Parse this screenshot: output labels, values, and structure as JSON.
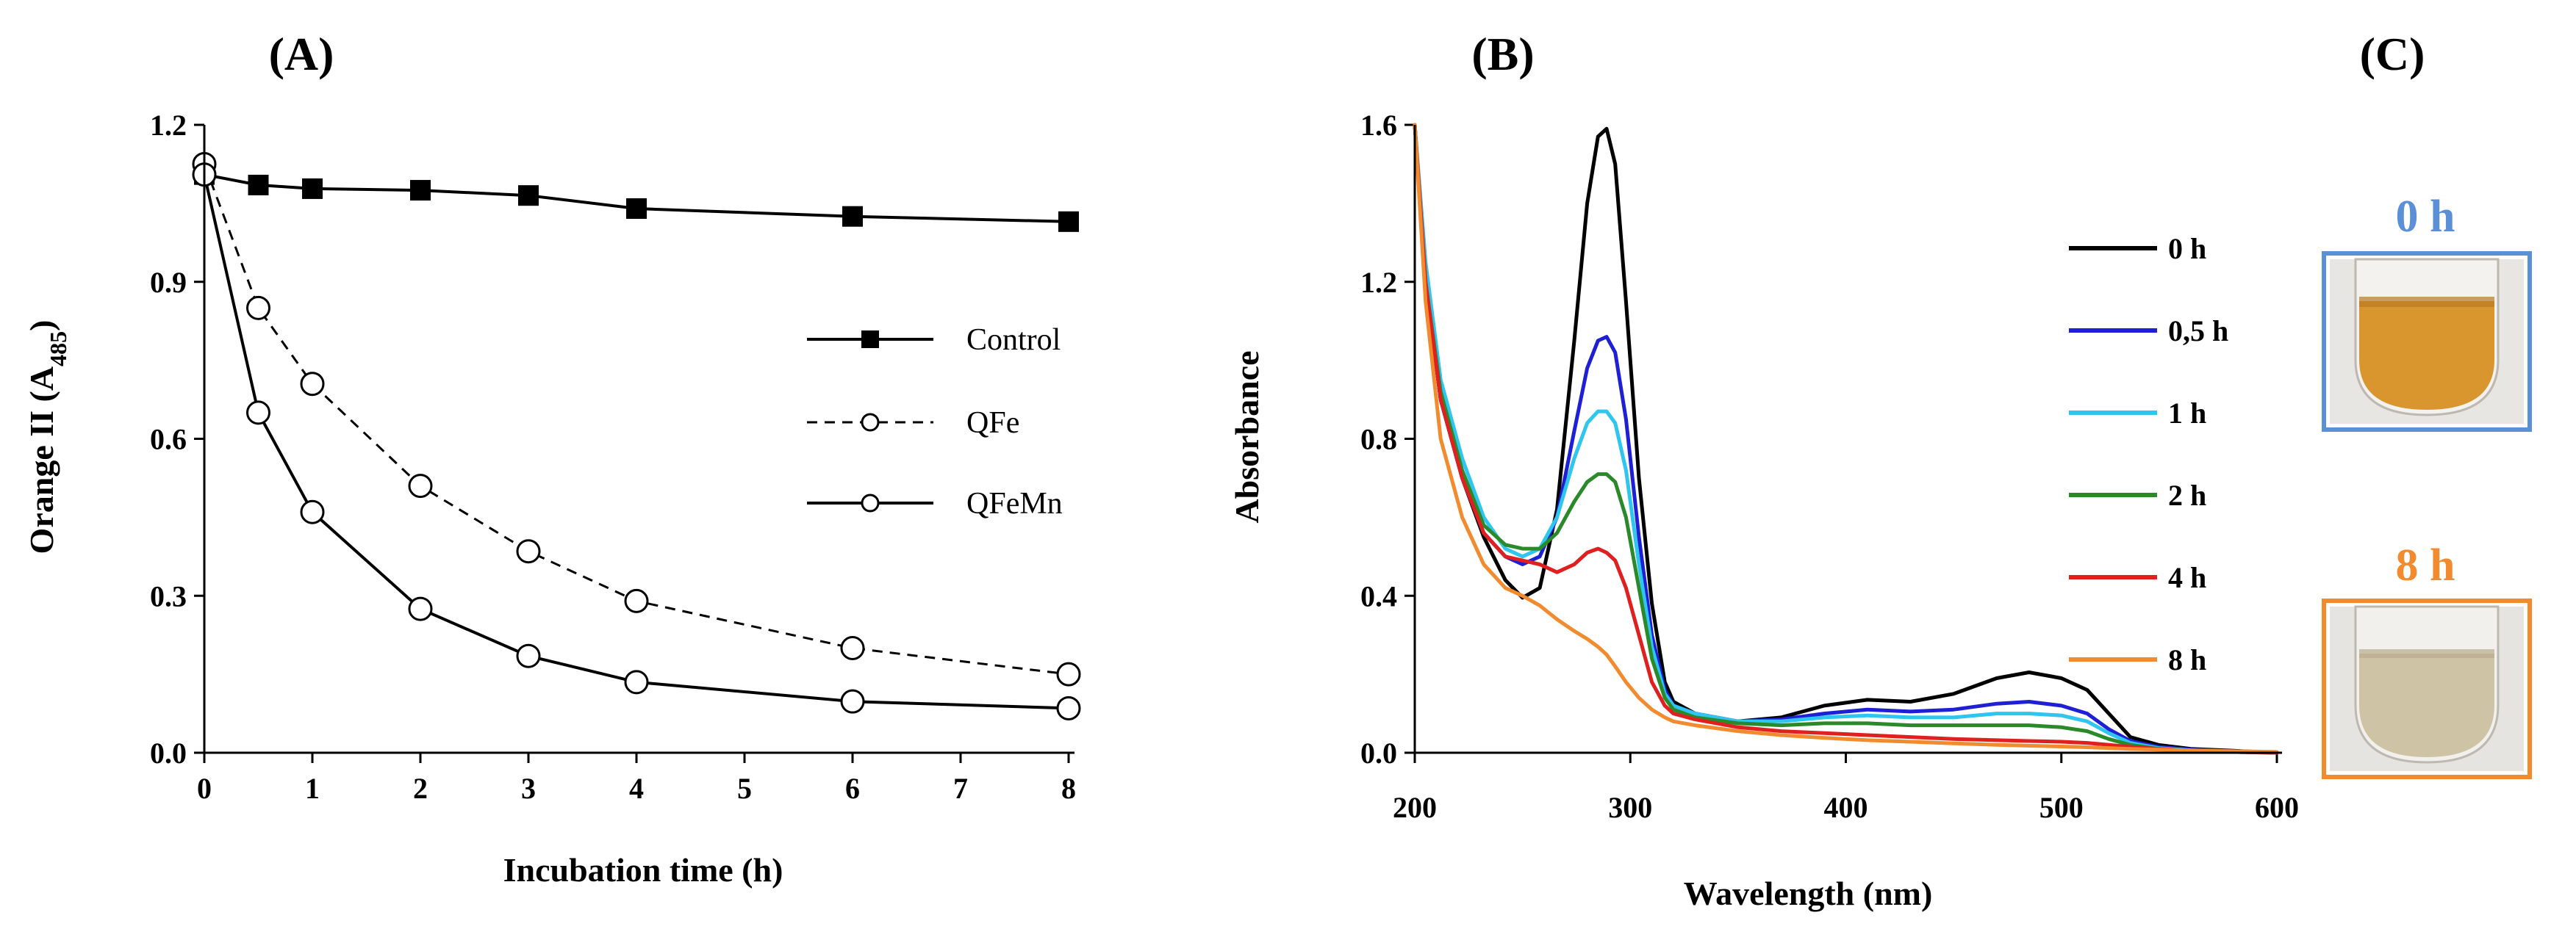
{
  "chart_data": [
    {
      "panel": "(A)",
      "type": "line",
      "xlabel": "Incubation time (h)",
      "ylabel_main": "Orange II (A",
      "ylabel_sub": "485",
      "ylabel_close": ")",
      "xlim": [
        0,
        8
      ],
      "ylim": [
        0,
        1.2
      ],
      "xticks": [
        0,
        1,
        2,
        3,
        4,
        5,
        6,
        7,
        8
      ],
      "yticks": [
        "0.0",
        "0.3",
        "0.6",
        "0.9",
        "1.2"
      ],
      "legend_position": "right",
      "series": [
        {
          "name": "Control",
          "style": "solid",
          "marker": "square-filled",
          "x": [
            0,
            0.5,
            1,
            2,
            3,
            4,
            6,
            8
          ],
          "y": [
            1.105,
            1.085,
            1.078,
            1.075,
            1.065,
            1.04,
            1.025,
            1.015
          ]
        },
        {
          "name": "QFe",
          "style": "dashed",
          "marker": "circle-open",
          "x": [
            0,
            0.5,
            1,
            2,
            3,
            4,
            6,
            8
          ],
          "y": [
            1.125,
            0.85,
            0.705,
            0.51,
            0.385,
            0.29,
            0.2,
            0.15
          ]
        },
        {
          "name": "QFeMn",
          "style": "solid",
          "marker": "circle-open",
          "x": [
            0,
            0.5,
            1,
            2,
            3,
            4,
            6,
            8
          ],
          "y": [
            1.105,
            0.65,
            0.46,
            0.275,
            0.185,
            0.135,
            0.098,
            0.085
          ]
        }
      ]
    },
    {
      "panel": "(B)",
      "type": "line",
      "xlabel": "Wavelength (nm)",
      "ylabel": "Absorbance",
      "xlim": [
        200,
        600
      ],
      "ylim": [
        0,
        1.6
      ],
      "xticks": [
        200,
        300,
        400,
        500,
        600
      ],
      "yticks": [
        "0.0",
        "0.4",
        "0.8",
        "1.2",
        "1.6"
      ],
      "legend_position": "right",
      "series": [
        {
          "name": "0 h",
          "color": "#000000",
          "x": [
            200,
            205,
            212,
            222,
            232,
            242,
            250,
            258,
            266,
            274,
            280,
            285,
            289,
            293,
            298,
            304,
            310,
            316,
            320,
            330,
            350,
            370,
            390,
            410,
            430,
            450,
            470,
            485,
            500,
            512,
            522,
            532,
            545,
            560,
            580,
            600
          ],
          "y": [
            1.6,
            1.2,
            0.9,
            0.7,
            0.55,
            0.44,
            0.395,
            0.42,
            0.62,
            1.05,
            1.4,
            1.57,
            1.59,
            1.5,
            1.15,
            0.7,
            0.38,
            0.18,
            0.13,
            0.1,
            0.08,
            0.09,
            0.12,
            0.135,
            0.13,
            0.15,
            0.19,
            0.205,
            0.19,
            0.16,
            0.1,
            0.04,
            0.02,
            0.01,
            0.005,
            0.0
          ]
        },
        {
          "name": "0,5 h",
          "color": "#1f1fd6",
          "x": [
            200,
            205,
            212,
            222,
            232,
            242,
            250,
            258,
            266,
            274,
            280,
            285,
            289,
            293,
            298,
            304,
            310,
            316,
            320,
            330,
            350,
            370,
            390,
            410,
            430,
            450,
            470,
            485,
            500,
            512,
            522,
            532,
            545,
            560,
            580,
            600
          ],
          "y": [
            1.6,
            1.2,
            0.9,
            0.7,
            0.56,
            0.5,
            0.48,
            0.5,
            0.6,
            0.82,
            0.98,
            1.05,
            1.06,
            1.02,
            0.85,
            0.55,
            0.3,
            0.16,
            0.12,
            0.1,
            0.08,
            0.085,
            0.1,
            0.11,
            0.105,
            0.11,
            0.125,
            0.13,
            0.12,
            0.1,
            0.06,
            0.03,
            0.015,
            0.008,
            0.004,
            0.0
          ]
        },
        {
          "name": "1 h",
          "color": "#2ec5ee",
          "x": [
            200,
            205,
            212,
            222,
            232,
            242,
            250,
            258,
            266,
            274,
            280,
            285,
            289,
            293,
            298,
            304,
            310,
            316,
            320,
            330,
            350,
            370,
            390,
            410,
            430,
            450,
            470,
            485,
            500,
            512,
            522,
            532,
            545,
            560,
            580,
            600
          ],
          "y": [
            1.6,
            1.25,
            0.95,
            0.75,
            0.6,
            0.52,
            0.5,
            0.52,
            0.6,
            0.75,
            0.84,
            0.87,
            0.87,
            0.84,
            0.72,
            0.48,
            0.27,
            0.15,
            0.12,
            0.1,
            0.08,
            0.08,
            0.09,
            0.095,
            0.09,
            0.09,
            0.1,
            0.1,
            0.095,
            0.08,
            0.05,
            0.025,
            0.012,
            0.006,
            0.003,
            0.0
          ]
        },
        {
          "name": "2 h",
          "color": "#2a8a2a",
          "x": [
            200,
            205,
            212,
            222,
            232,
            242,
            250,
            258,
            266,
            274,
            280,
            285,
            289,
            293,
            298,
            304,
            310,
            316,
            320,
            330,
            350,
            370,
            390,
            410,
            430,
            450,
            470,
            485,
            500,
            512,
            522,
            532,
            545,
            560,
            580,
            600
          ],
          "y": [
            1.6,
            1.2,
            0.92,
            0.72,
            0.58,
            0.53,
            0.52,
            0.52,
            0.56,
            0.64,
            0.69,
            0.71,
            0.71,
            0.69,
            0.6,
            0.42,
            0.24,
            0.14,
            0.11,
            0.09,
            0.075,
            0.07,
            0.075,
            0.075,
            0.07,
            0.07,
            0.07,
            0.07,
            0.065,
            0.055,
            0.035,
            0.02,
            0.01,
            0.005,
            0.002,
            0.0
          ]
        },
        {
          "name": "4 h",
          "color": "#e01f1f",
          "x": [
            200,
            205,
            212,
            222,
            232,
            242,
            250,
            258,
            266,
            274,
            280,
            285,
            289,
            293,
            298,
            304,
            310,
            316,
            320,
            330,
            350,
            370,
            390,
            410,
            430,
            450,
            470,
            485,
            500,
            512,
            522,
            532,
            545,
            560,
            580,
            600
          ],
          "y": [
            1.6,
            1.2,
            0.9,
            0.7,
            0.56,
            0.5,
            0.49,
            0.48,
            0.46,
            0.48,
            0.51,
            0.52,
            0.51,
            0.49,
            0.42,
            0.3,
            0.18,
            0.12,
            0.1,
            0.085,
            0.065,
            0.055,
            0.05,
            0.045,
            0.04,
            0.035,
            0.032,
            0.03,
            0.028,
            0.025,
            0.02,
            0.015,
            0.01,
            0.005,
            0.002,
            0.0
          ]
        },
        {
          "name": "8 h",
          "color": "#f28a2e",
          "x": [
            200,
            205,
            212,
            222,
            232,
            242,
            250,
            258,
            266,
            274,
            280,
            285,
            289,
            293,
            298,
            304,
            310,
            316,
            320,
            330,
            350,
            370,
            390,
            410,
            430,
            450,
            470,
            485,
            500,
            512,
            522,
            532,
            545,
            560,
            580,
            600
          ],
          "y": [
            1.6,
            1.15,
            0.8,
            0.6,
            0.48,
            0.42,
            0.4,
            0.375,
            0.34,
            0.31,
            0.29,
            0.27,
            0.25,
            0.22,
            0.18,
            0.14,
            0.11,
            0.09,
            0.08,
            0.07,
            0.055,
            0.045,
            0.038,
            0.032,
            0.028,
            0.024,
            0.02,
            0.018,
            0.016,
            0.014,
            0.012,
            0.01,
            0.008,
            0.006,
            0.004,
            0.002
          ]
        }
      ]
    }
  ],
  "panel_c": {
    "label": "(C)",
    "photos": [
      {
        "caption": "0 h",
        "caption_color": "#5b8fd6",
        "frame_color": "#5b8fd6",
        "liquid_color": "#d9952e"
      },
      {
        "caption": "8 h",
        "caption_color": "#f28a2e",
        "frame_color": "#f28a2e",
        "liquid_color": "#cfc3a6"
      }
    ]
  }
}
